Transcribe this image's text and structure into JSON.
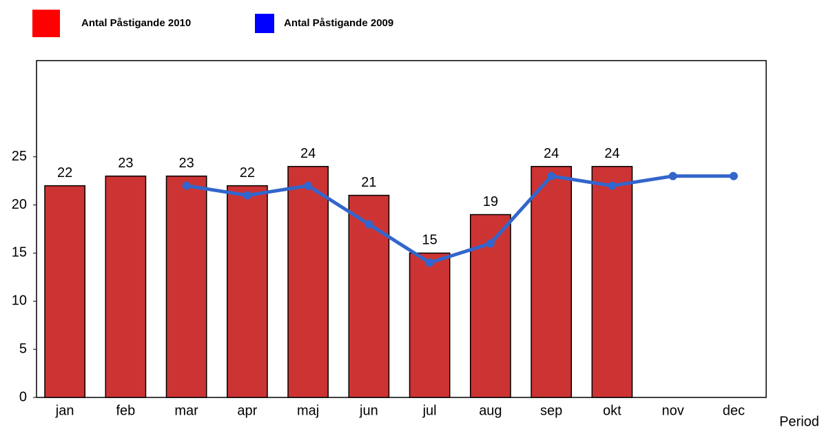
{
  "chart_data": {
    "type": "bar-line",
    "x_label": "Period",
    "categories": [
      "jan",
      "feb",
      "mar",
      "apr",
      "maj",
      "jun",
      "jul",
      "aug",
      "sep",
      "okt",
      "nov",
      "dec"
    ],
    "series": [
      {
        "name": "Antal Påstigande 2010",
        "type": "bar",
        "color": "#cc3333",
        "legend_color": "#ff0000",
        "values": [
          22,
          23,
          23,
          22,
          24,
          21,
          15,
          19,
          24,
          24,
          null,
          null
        ]
      },
      {
        "name": "Antal Påstigande 2009",
        "type": "line",
        "color": "#3366cc",
        "legend_color": "#0000ff",
        "values": [
          null,
          null,
          22,
          21,
          22,
          18,
          14,
          16,
          23,
          22,
          23,
          23
        ]
      }
    ],
    "ylim": [
      0,
      35
    ],
    "yticks": [
      0,
      5,
      10,
      15,
      20,
      25
    ]
  }
}
